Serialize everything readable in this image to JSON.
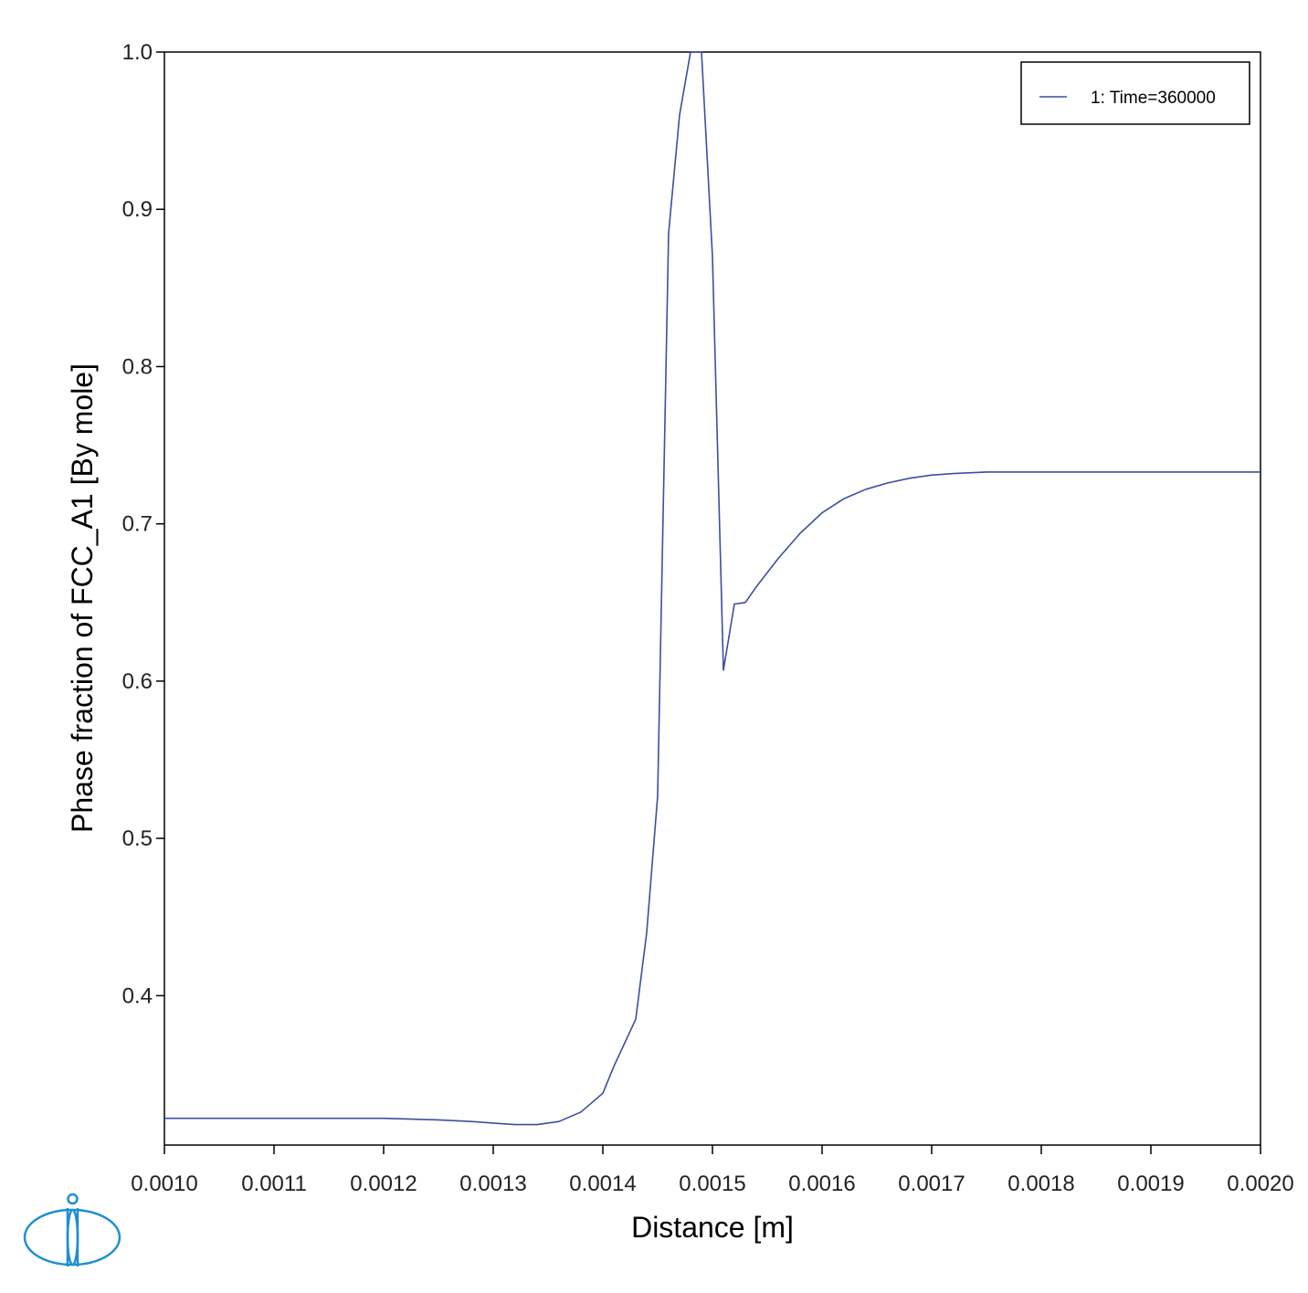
{
  "chart_data": {
    "type": "line",
    "xlabel": "Distance [m]",
    "ylabel": "Phase fraction of FCC_A1 [By mole]",
    "xlim": [
      0.001,
      0.002
    ],
    "ylim": [
      0.305,
      1.0
    ],
    "x_ticks": [
      0.001,
      0.0011,
      0.0012,
      0.0013,
      0.0014,
      0.0015,
      0.0016,
      0.0017,
      0.0018,
      0.0019,
      0.002
    ],
    "x_tick_labels": [
      "0.0010",
      "0.0011",
      "0.0012",
      "0.0013",
      "0.0014",
      "0.0015",
      "0.0016",
      "0.0017",
      "0.0018",
      "0.0019",
      "0.0020"
    ],
    "y_ticks": [
      0.4,
      0.5,
      0.6,
      0.7,
      0.8,
      0.9,
      1.0
    ],
    "y_tick_labels": [
      "0.4",
      "0.5",
      "0.6",
      "0.7",
      "0.8",
      "0.9",
      "1.0"
    ],
    "grid": false,
    "legend_position": "top-right",
    "series": [
      {
        "name": "1:  Time=360000",
        "color": "#3c4ea0",
        "x": [
          0.001,
          0.00105,
          0.0011,
          0.00115,
          0.0012,
          0.00125,
          0.00128,
          0.0013,
          0.00132,
          0.00134,
          0.00136,
          0.00138,
          0.0014,
          0.00141,
          0.00143,
          0.00144,
          0.00145,
          0.00146,
          0.00147,
          0.00148,
          0.00149,
          0.0015,
          0.00151,
          0.00152,
          0.00153,
          0.00154,
          0.00156,
          0.00158,
          0.0016,
          0.00162,
          0.00164,
          0.00166,
          0.00168,
          0.0017,
          0.00172,
          0.00175,
          0.0018,
          0.0019,
          0.002
        ],
        "y": [
          0.322,
          0.322,
          0.322,
          0.322,
          0.322,
          0.321,
          0.32,
          0.319,
          0.318,
          0.318,
          0.32,
          0.326,
          0.338,
          0.355,
          0.385,
          0.44,
          0.527,
          0.885,
          0.96,
          1.0,
          1.0,
          0.87,
          0.607,
          0.649,
          0.65,
          0.66,
          0.678,
          0.694,
          0.707,
          0.716,
          0.722,
          0.726,
          0.729,
          0.731,
          0.732,
          0.733,
          0.733,
          0.733,
          0.733
        ]
      }
    ]
  },
  "logo": {
    "name": "thermo-calc-logo-icon",
    "color": "#1e90cf"
  }
}
